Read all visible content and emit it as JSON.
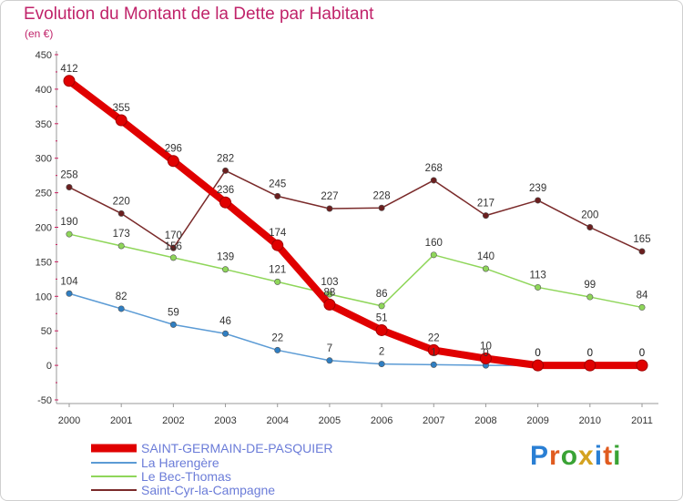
{
  "header": {
    "title": "Evolution du Montant de la Dette par Habitant",
    "unit": "(en €)"
  },
  "logo": {
    "text": "Proxiti",
    "colors": [
      "#2a7fd4",
      "#e05b1f",
      "#3aa335",
      "#d4a21f",
      "#2a7fd4",
      "#e05b1f",
      "#3aa335"
    ]
  },
  "chart_data": {
    "type": "line",
    "title": "Evolution du Montant de la Dette par Habitant",
    "ylabel": "(en €)",
    "ylim": [
      -50,
      450
    ],
    "yticks": [
      -50,
      0,
      50,
      100,
      150,
      200,
      250,
      300,
      350,
      400,
      450
    ],
    "x": [
      "2000",
      "2001",
      "2002",
      "2003",
      "2004",
      "2005",
      "2006",
      "2007",
      "2008",
      "2009",
      "2010",
      "2011"
    ],
    "grid": false,
    "legend_position": "bottom-left",
    "series": [
      {
        "name": "Saint-Cyr-la-Campagne",
        "color": "#7a2a2a",
        "marker": "#6b1f1f",
        "width": 1.5,
        "values": [
          258,
          220,
          170,
          282,
          245,
          227,
          228,
          268,
          217,
          239,
          200,
          165
        ]
      },
      {
        "name": "Le Bec-Thomas",
        "color": "#8fd65a",
        "marker": "#8fd65a",
        "width": 1.5,
        "values": [
          190,
          173,
          156,
          139,
          121,
          103,
          86,
          160,
          140,
          113,
          99,
          84
        ]
      },
      {
        "name": "La Harengère",
        "color": "#5b9bd5",
        "marker": "#2f7ec2",
        "width": 1.5,
        "values": [
          104,
          82,
          59,
          46,
          22,
          7,
          2,
          1,
          0,
          0,
          0,
          0
        ]
      },
      {
        "name": "SAINT-GERMAIN-DE-PASQUIER",
        "color": "#e00000",
        "marker": "#e00000",
        "width": 8,
        "values": [
          412,
          355,
          296,
          236,
          174,
          88,
          51,
          22,
          10,
          0,
          0,
          0
        ]
      }
    ],
    "legend_order": [
      "SAINT-GERMAIN-DE-PASQUIER",
      "La Harengère",
      "Le Bec-Thomas",
      "Saint-Cyr-la-Campagne"
    ],
    "data_labels": [
      {
        "series": "SAINT-GERMAIN-DE-PASQUIER",
        "texts": [
          "412",
          "355",
          "296",
          "236",
          "174",
          "88",
          "51",
          "22",
          "10",
          "0",
          "0",
          "0"
        ]
      },
      {
        "series": "Saint-Cyr-la-Campagne",
        "texts": [
          "258",
          "220",
          "",
          "282",
          "245",
          "227",
          "228",
          "268",
          "217",
          "239",
          "200",
          "165"
        ]
      },
      {
        "series": "Le Bec-Thomas",
        "texts": [
          "190",
          "173",
          "",
          "139",
          "121",
          "103",
          "86",
          "160",
          "140",
          "113",
          "99",
          "84"
        ]
      },
      {
        "series": "La Harengère",
        "texts": [
          "104",
          "82",
          "59",
          "46",
          "22",
          "7",
          "2",
          "1",
          "0",
          "0",
          "0",
          "0"
        ]
      }
    ],
    "overlap_labels": [
      "170",
      "156"
    ]
  }
}
